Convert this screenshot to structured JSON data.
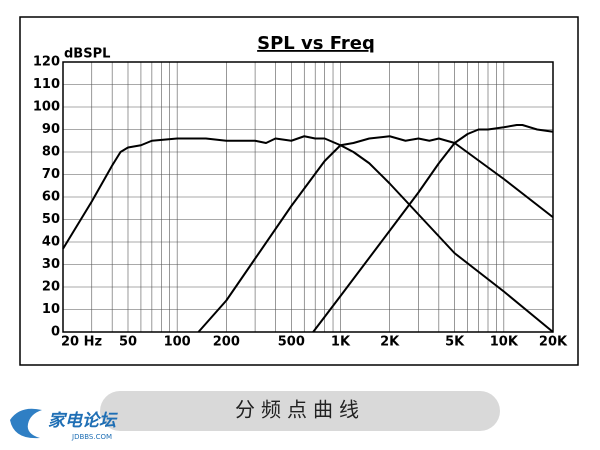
{
  "chart_data": {
    "type": "line",
    "title": "SPL vs Freq",
    "y_label": "dBSPL",
    "log_x": true,
    "grid": true,
    "color": "#000000",
    "xlim": [
      20,
      20000
    ],
    "ylim": [
      0,
      120
    ],
    "xticks": [
      {
        "value": 20,
        "label": "20 Hz"
      },
      50,
      100,
      200,
      500,
      {
        "value": 1000,
        "label": "1K"
      },
      {
        "value": 2000,
        "label": "2K"
      },
      {
        "value": 5000,
        "label": "5K"
      },
      {
        "value": 10000,
        "label": "10K"
      },
      {
        "value": 20000,
        "label": "20K"
      }
    ],
    "xgrid": [
      20,
      30,
      40,
      50,
      60,
      70,
      80,
      90,
      100,
      200,
      300,
      400,
      500,
      600,
      700,
      800,
      900,
      1000,
      2000,
      3000,
      4000,
      5000,
      6000,
      7000,
      8000,
      9000,
      10000,
      20000
    ],
    "yticks": [
      0,
      10,
      20,
      30,
      40,
      50,
      60,
      70,
      80,
      90,
      100,
      110,
      120
    ],
    "series": [
      {
        "x": [
          20,
          30,
          40,
          45,
          50,
          60,
          70,
          100,
          150,
          200,
          300,
          350,
          400,
          500,
          600,
          700,
          800,
          1000,
          1200,
          1500,
          2000,
          5000,
          10000,
          20000
        ],
        "values": [
          37,
          58,
          74,
          80,
          82,
          83,
          85,
          86,
          86,
          85,
          85,
          84,
          86,
          85,
          87,
          86,
          86,
          83,
          80,
          75,
          66,
          35,
          18,
          0
        ]
      },
      {
        "x": [
          135,
          200,
          500,
          800,
          1000,
          1200,
          1500,
          2000,
          2500,
          3000,
          3500,
          4000,
          5000,
          10000,
          20000
        ],
        "values": [
          0,
          14,
          56,
          76,
          83,
          84,
          86,
          87,
          85,
          86,
          85,
          86,
          84,
          68,
          51
        ]
      },
      {
        "x": [
          680,
          1000,
          2000,
          3000,
          4000,
          5000,
          6000,
          7000,
          8000,
          10000,
          12000,
          13000,
          16000,
          20000
        ],
        "values": [
          0,
          16,
          45,
          62,
          75,
          84,
          88,
          90,
          90,
          91,
          92,
          92,
          90,
          89
        ]
      }
    ]
  },
  "caption": "分频点曲线",
  "logo": {
    "name": "家电论坛",
    "site": "JDBBS.COM"
  }
}
